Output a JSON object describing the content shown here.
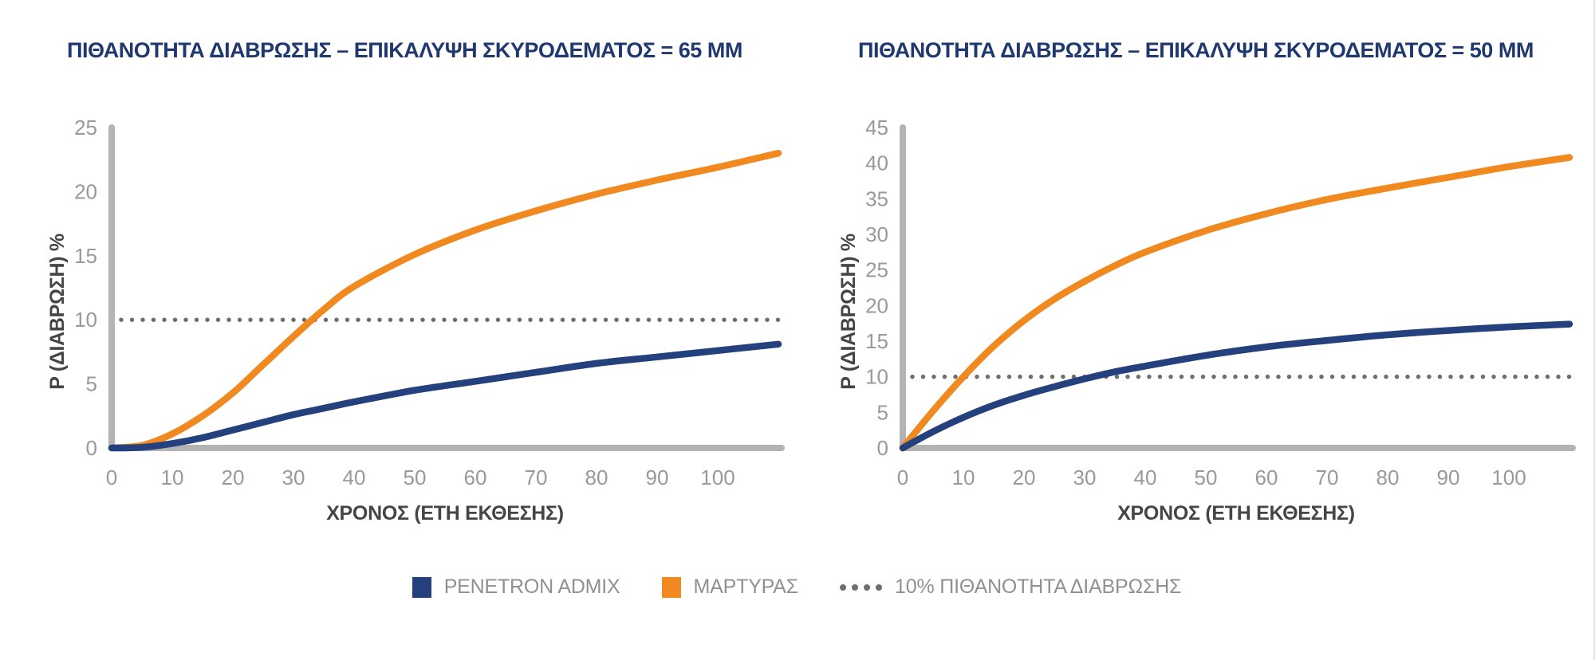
{
  "colors": {
    "title_navy": "#1f3970",
    "series_navy": "#24417d",
    "series_orange": "#f0891f",
    "axis_line": "#b3b3b3",
    "tick_text": "#97999c",
    "axis_label_text": "#454547",
    "legend_text": "#8e9093",
    "threshold_dots": "#6e6e6e"
  },
  "legend": {
    "items": [
      {
        "label": "PENETRON ADMIX",
        "swatch": "#24417d",
        "type": "square"
      },
      {
        "label": "ΜΑΡΤΥΡΑΣ",
        "swatch": "#f0891f",
        "type": "square"
      },
      {
        "label": "10% ΠΙΘΑΝΟΤΗΤΑ ΔΙΑΒΡΩΣΗΣ",
        "swatch": "#6e6e6e",
        "type": "dots"
      }
    ]
  },
  "chart_data": [
    {
      "type": "line",
      "title": "ΠΙΘΑΝΟΤΗΤΑ ΔΙΑΒΡΩΣΗΣ – ΕΠΙΚΑΛΥΨΗ ΣΚΥΡΟΔΕΜΑΤΟΣ = 65 MM",
      "xlabel": "ΧΡΟΝΟΣ (ΕΤΗ ΕΚΘΕΣΗΣ)",
      "ylabel": "P (ΔΙΑΒΡΩΣΗ) %",
      "xlim": [
        0,
        110
      ],
      "ylim": [
        0,
        25
      ],
      "xticks": [
        0,
        10,
        20,
        30,
        40,
        50,
        60,
        70,
        80,
        90,
        100
      ],
      "yticks": [
        0,
        5,
        10,
        15,
        20,
        25
      ],
      "grid": false,
      "x": [
        0,
        5,
        10,
        15,
        20,
        25,
        30,
        35,
        40,
        50,
        60,
        70,
        80,
        90,
        100,
        110
      ],
      "series": [
        {
          "name": "ΜΑΡΤΥΡΑΣ",
          "color": "#f0891f",
          "values": [
            0,
            0.2,
            1.1,
            2.5,
            4.3,
            6.5,
            8.7,
            10.8,
            12.6,
            15.1,
            17.0,
            18.5,
            19.8,
            20.9,
            21.9,
            23.0
          ]
        },
        {
          "name": "PENETRON ADMIX",
          "color": "#24417d",
          "values": [
            0,
            0.05,
            0.35,
            0.8,
            1.4,
            2.0,
            2.6,
            3.1,
            3.6,
            4.5,
            5.2,
            5.9,
            6.6,
            7.1,
            7.6,
            8.1
          ]
        }
      ],
      "threshold": {
        "value": 10,
        "label": "10% ΠΙΘΑΝΟΤΗΤΑ ΔΙΑΒΡΩΣΗΣ",
        "color": "#6e6e6e"
      }
    },
    {
      "type": "line",
      "title": "ΠΙΘΑΝΟΤΗΤΑ ΔΙΑΒΡΩΣΗΣ – ΕΠΙΚΑΛΥΨΗ ΣΚΥΡΟΔΕΜΑΤΟΣ = 50 MM",
      "xlabel": "ΧΡΟΝΟΣ (ΕΤΗ ΕΚΘΕΣΗΣ)",
      "ylabel": "P (ΔΙΑΒΡΩΣΗ) %",
      "xlim": [
        0,
        110
      ],
      "ylim": [
        0,
        45
      ],
      "xticks": [
        0,
        10,
        20,
        30,
        40,
        50,
        60,
        70,
        80,
        90,
        100
      ],
      "yticks": [
        0,
        5,
        10,
        15,
        20,
        25,
        30,
        35,
        40,
        45
      ],
      "grid": false,
      "x": [
        0,
        5,
        10,
        15,
        20,
        25,
        30,
        35,
        40,
        50,
        60,
        70,
        80,
        90,
        100,
        110
      ],
      "series": [
        {
          "name": "ΜΑΡΤΥΡΑΣ",
          "color": "#f0891f",
          "values": [
            0,
            5.2,
            10.0,
            14.3,
            17.9,
            20.9,
            23.4,
            25.6,
            27.5,
            30.5,
            32.9,
            34.9,
            36.5,
            38.0,
            39.5,
            40.8
          ]
        },
        {
          "name": "PENETRON ADMIX",
          "color": "#24417d",
          "values": [
            0,
            2.3,
            4.3,
            6.0,
            7.4,
            8.6,
            9.7,
            10.7,
            11.5,
            13.0,
            14.2,
            15.1,
            15.9,
            16.5,
            17.0,
            17.4
          ]
        }
      ],
      "threshold": {
        "value": 10,
        "label": "10% ΠΙΘΑΝΟΤΗΤΑ ΔΙΑΒΡΩΣΗΣ",
        "color": "#6e6e6e"
      }
    }
  ]
}
